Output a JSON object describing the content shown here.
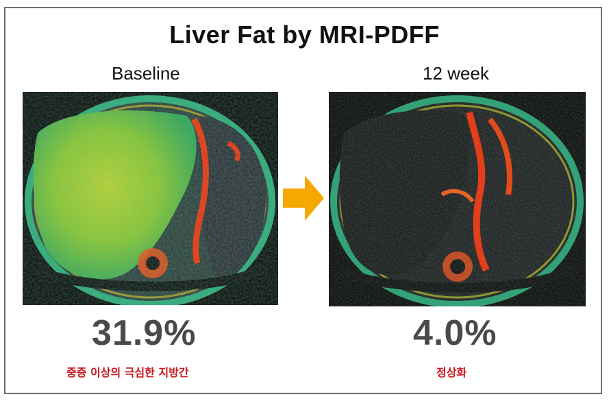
{
  "title": "Liver Fat by MRI-PDFF",
  "panels": [
    {
      "label": "Baseline",
      "value": "31.9%",
      "note": "중증 이상의 극심한 지방간"
    },
    {
      "label": "12 week",
      "value": "4.0%",
      "note": "정상화"
    }
  ],
  "colors": {
    "arrow": "#f5a800",
    "note_text": "#c8161d",
    "value_text": "#4a4a4a",
    "fat_map_low": "#1d9b7a",
    "fat_map_mid": "#9bd11a",
    "fat_map_high": "#ff2a00"
  }
}
